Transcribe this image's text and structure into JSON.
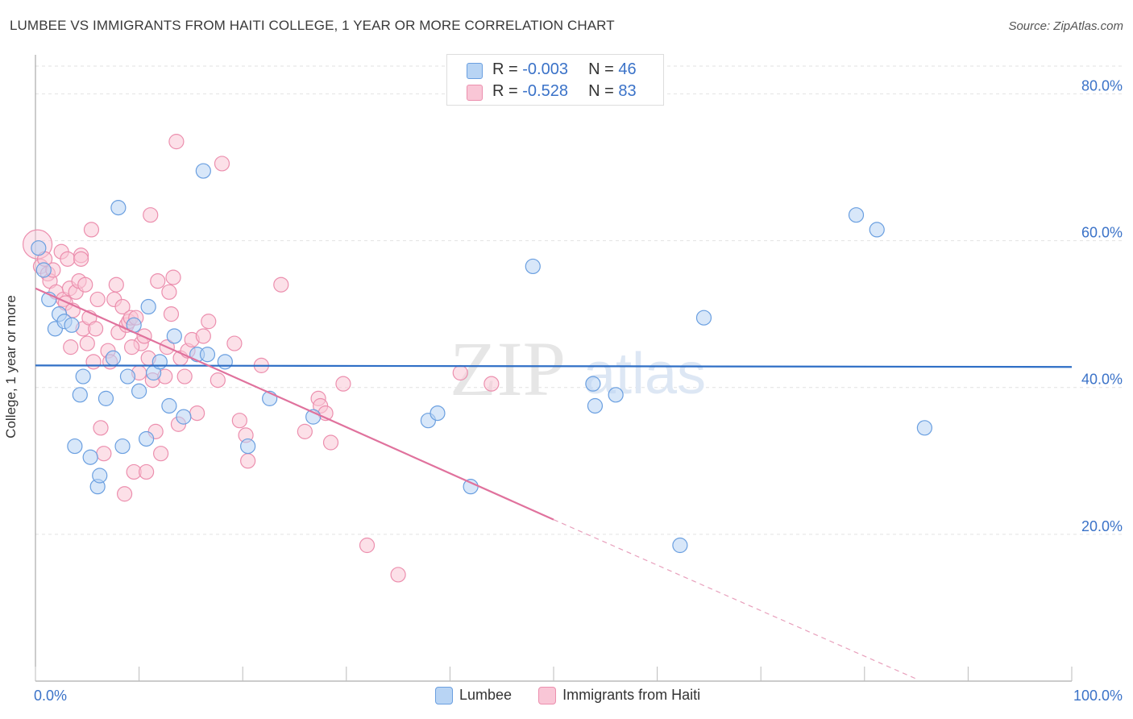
{
  "title": "LUMBEE VS IMMIGRANTS FROM HAITI COLLEGE, 1 YEAR OR MORE CORRELATION CHART",
  "source": "Source: ZipAtlas.com",
  "watermark": {
    "zip": "ZIP",
    "atlas": "atlas"
  },
  "legend_top": {
    "rows": [
      {
        "r_label": "R = ",
        "r_value": "-0.003",
        "n_label": "N = ",
        "n_value": "46",
        "fill": "#b8d4f4",
        "stroke": "#6a9fe0"
      },
      {
        "r_label": "R = ",
        "r_value": "-0.528",
        "n_label": "N = ",
        "n_value": "83",
        "fill": "#f9c6d6",
        "stroke": "#ec8fae"
      }
    ]
  },
  "chart_data": {
    "type": "scatter",
    "title": "LUMBEE VS IMMIGRANTS FROM HAITI COLLEGE, 1 YEAR OR MORE CORRELATION CHART",
    "xlabel": "",
    "ylabel": "College, 1 year or more",
    "xlim": [
      0,
      100
    ],
    "ylim": [
      0,
      84
    ],
    "x_tick_labels": [
      "0.0%",
      "100.0%"
    ],
    "y_ticks": [
      20,
      40,
      60,
      80
    ],
    "y_tick_labels": [
      "20.0%",
      "40.0%",
      "60.0%",
      "80.0%"
    ],
    "grid": true,
    "legend_position": "bottom",
    "series": [
      {
        "name": "Lumbee",
        "color": "#6a9fe0",
        "fill": "#b8d4f4",
        "trend": {
          "x": [
            0,
            100
          ],
          "y": [
            43.0,
            42.8
          ],
          "style": "solid"
        },
        "points": [
          {
            "x": 0.3,
            "y": 59.0
          },
          {
            "x": 0.8,
            "y": 56.0
          },
          {
            "x": 1.3,
            "y": 52.0
          },
          {
            "x": 1.9,
            "y": 48.0
          },
          {
            "x": 2.3,
            "y": 50.0
          },
          {
            "x": 2.8,
            "y": 49.0
          },
          {
            "x": 3.5,
            "y": 48.5
          },
          {
            "x": 3.8,
            "y": 32.0
          },
          {
            "x": 4.3,
            "y": 39.0
          },
          {
            "x": 4.6,
            "y": 41.5
          },
          {
            "x": 5.3,
            "y": 30.5
          },
          {
            "x": 6.0,
            "y": 26.5
          },
          {
            "x": 6.2,
            "y": 28.0
          },
          {
            "x": 6.8,
            "y": 38.5
          },
          {
            "x": 7.5,
            "y": 44.0
          },
          {
            "x": 8.0,
            "y": 64.5
          },
          {
            "x": 8.4,
            "y": 32.0
          },
          {
            "x": 8.9,
            "y": 41.5
          },
          {
            "x": 9.5,
            "y": 48.5
          },
          {
            "x": 10.0,
            "y": 39.5
          },
          {
            "x": 10.7,
            "y": 33.0
          },
          {
            "x": 10.9,
            "y": 51.0
          },
          {
            "x": 11.4,
            "y": 42.0
          },
          {
            "x": 12.0,
            "y": 43.5
          },
          {
            "x": 12.9,
            "y": 37.5
          },
          {
            "x": 13.4,
            "y": 47.0
          },
          {
            "x": 14.3,
            "y": 36.0
          },
          {
            "x": 15.6,
            "y": 44.5
          },
          {
            "x": 16.2,
            "y": 69.5
          },
          {
            "x": 16.6,
            "y": 44.5
          },
          {
            "x": 18.3,
            "y": 43.5
          },
          {
            "x": 20.5,
            "y": 32.0
          },
          {
            "x": 22.6,
            "y": 38.5
          },
          {
            "x": 26.8,
            "y": 36.0
          },
          {
            "x": 37.9,
            "y": 35.5
          },
          {
            "x": 38.8,
            "y": 36.5
          },
          {
            "x": 42.0,
            "y": 26.5
          },
          {
            "x": 48.0,
            "y": 56.5
          },
          {
            "x": 53.8,
            "y": 40.5
          },
          {
            "x": 54.0,
            "y": 37.5
          },
          {
            "x": 56.0,
            "y": 39.0
          },
          {
            "x": 62.2,
            "y": 18.5
          },
          {
            "x": 64.5,
            "y": 49.5
          },
          {
            "x": 79.2,
            "y": 63.5
          },
          {
            "x": 81.2,
            "y": 61.5
          },
          {
            "x": 85.8,
            "y": 34.5
          }
        ]
      },
      {
        "name": "Immigrants from Haiti",
        "color": "#ec8fae",
        "fill": "#f9c6d6",
        "trend": {
          "x": [
            0,
            50
          ],
          "y": [
            53.5,
            22.0
          ],
          "style": "solid",
          "dashed_extension": {
            "x": [
              50,
              85
            ],
            "y": [
              22.0,
              0.3
            ]
          }
        },
        "points": [
          {
            "x": 0.2,
            "y": 59.5,
            "big": true
          },
          {
            "x": 0.5,
            "y": 56.5
          },
          {
            "x": 0.9,
            "y": 57.5
          },
          {
            "x": 1.2,
            "y": 55.5
          },
          {
            "x": 1.4,
            "y": 54.5
          },
          {
            "x": 1.7,
            "y": 56.0
          },
          {
            "x": 2.0,
            "y": 53.0
          },
          {
            "x": 2.5,
            "y": 58.5
          },
          {
            "x": 2.7,
            "y": 52.0
          },
          {
            "x": 2.9,
            "y": 51.5
          },
          {
            "x": 3.1,
            "y": 57.5
          },
          {
            "x": 3.3,
            "y": 53.5
          },
          {
            "x": 3.4,
            "y": 45.5
          },
          {
            "x": 3.6,
            "y": 50.5
          },
          {
            "x": 3.9,
            "y": 53.0
          },
          {
            "x": 4.2,
            "y": 54.5
          },
          {
            "x": 4.4,
            "y": 58.0
          },
          {
            "x": 4.4,
            "y": 57.5
          },
          {
            "x": 4.6,
            "y": 48.0
          },
          {
            "x": 4.8,
            "y": 54.0
          },
          {
            "x": 5.0,
            "y": 46.0
          },
          {
            "x": 5.2,
            "y": 49.5
          },
          {
            "x": 5.4,
            "y": 61.5
          },
          {
            "x": 5.6,
            "y": 43.5
          },
          {
            "x": 5.8,
            "y": 48.0
          },
          {
            "x": 6.0,
            "y": 52.0
          },
          {
            "x": 6.3,
            "y": 34.5
          },
          {
            "x": 6.6,
            "y": 31.0
          },
          {
            "x": 7.0,
            "y": 45.0
          },
          {
            "x": 7.2,
            "y": 43.5
          },
          {
            "x": 7.6,
            "y": 52.0
          },
          {
            "x": 7.8,
            "y": 54.0
          },
          {
            "x": 8.0,
            "y": 47.5
          },
          {
            "x": 8.4,
            "y": 51.0
          },
          {
            "x": 8.6,
            "y": 25.5
          },
          {
            "x": 8.8,
            "y": 48.5
          },
          {
            "x": 9.0,
            "y": 49.0
          },
          {
            "x": 9.2,
            "y": 49.5
          },
          {
            "x": 9.5,
            "y": 28.5
          },
          {
            "x": 9.7,
            "y": 49.5
          },
          {
            "x": 10.0,
            "y": 42.0
          },
          {
            "x": 10.2,
            "y": 46.0
          },
          {
            "x": 10.5,
            "y": 47.0
          },
          {
            "x": 10.7,
            "y": 28.5
          },
          {
            "x": 10.9,
            "y": 44.0
          },
          {
            "x": 11.1,
            "y": 63.5
          },
          {
            "x": 11.3,
            "y": 41.0
          },
          {
            "x": 11.6,
            "y": 34.0
          },
          {
            "x": 11.8,
            "y": 54.5
          },
          {
            "x": 12.1,
            "y": 31.0
          },
          {
            "x": 12.5,
            "y": 41.5
          },
          {
            "x": 12.7,
            "y": 45.5
          },
          {
            "x": 12.9,
            "y": 53.0
          },
          {
            "x": 13.1,
            "y": 50.0
          },
          {
            "x": 13.3,
            "y": 55.0
          },
          {
            "x": 13.6,
            "y": 73.5
          },
          {
            "x": 13.8,
            "y": 35.0
          },
          {
            "x": 14.0,
            "y": 44.0
          },
          {
            "x": 14.4,
            "y": 41.5
          },
          {
            "x": 14.7,
            "y": 45.0
          },
          {
            "x": 15.1,
            "y": 46.5
          },
          {
            "x": 15.6,
            "y": 36.5
          },
          {
            "x": 16.2,
            "y": 47.0
          },
          {
            "x": 16.7,
            "y": 49.0
          },
          {
            "x": 17.6,
            "y": 41.0
          },
          {
            "x": 18.0,
            "y": 70.5
          },
          {
            "x": 19.2,
            "y": 46.0
          },
          {
            "x": 19.7,
            "y": 35.5
          },
          {
            "x": 20.3,
            "y": 33.5
          },
          {
            "x": 20.5,
            "y": 30.0
          },
          {
            "x": 21.8,
            "y": 43.0
          },
          {
            "x": 23.7,
            "y": 54.0
          },
          {
            "x": 26.0,
            "y": 34.0
          },
          {
            "x": 27.3,
            "y": 38.5
          },
          {
            "x": 27.5,
            "y": 37.5
          },
          {
            "x": 28.0,
            "y": 36.5
          },
          {
            "x": 28.5,
            "y": 32.5
          },
          {
            "x": 29.7,
            "y": 40.5
          },
          {
            "x": 32.0,
            "y": 18.5
          },
          {
            "x": 35.0,
            "y": 14.5
          },
          {
            "x": 41.0,
            "y": 42.0
          },
          {
            "x": 44.0,
            "y": 40.5
          },
          {
            "x": 9.3,
            "y": 45.5
          }
        ]
      }
    ]
  }
}
